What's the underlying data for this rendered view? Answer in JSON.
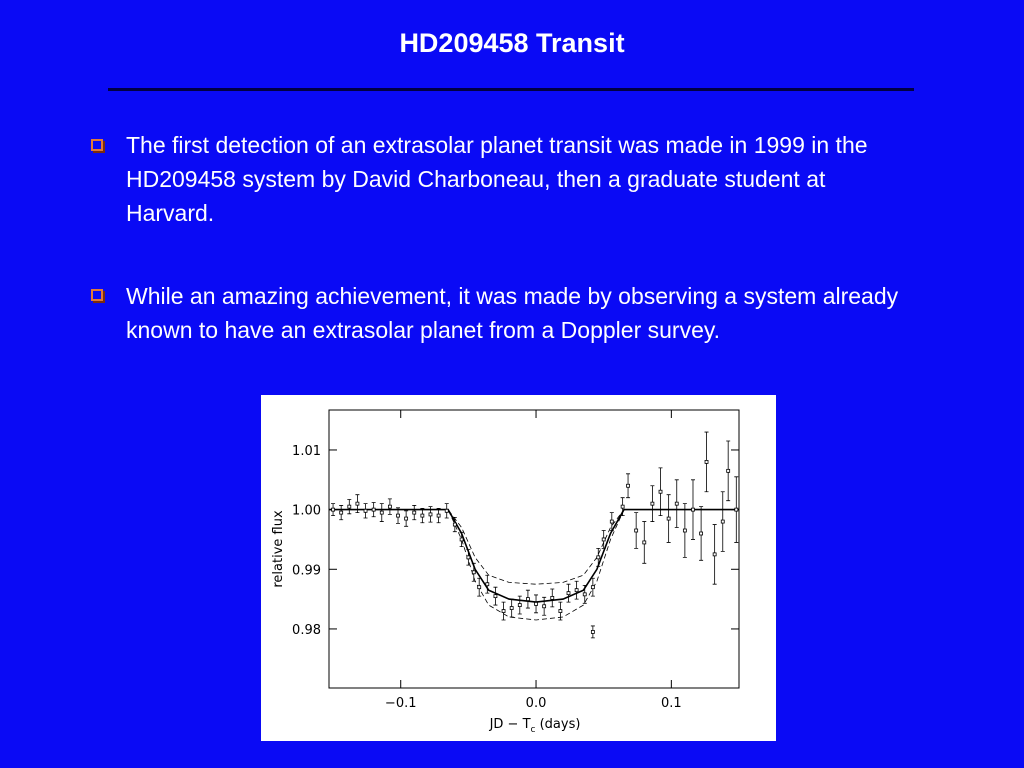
{
  "header": {
    "title": "HD209458 Transit"
  },
  "bullets": [
    "The first detection of an extrasolar planet transit was made in 1999 in the HD209458 system by David Charboneau, then a graduate student at Harvard.",
    "While an amazing achievement, it was made by observing a system already known to have an extrasolar planet from a Doppler survey."
  ],
  "figure": {
    "type": "scatter",
    "xlabel": "JD − T",
    "xlabel_sub": "c",
    "xlabel_suffix": " (days)",
    "ylabel": "relative flux",
    "xlim": [
      -0.153,
      0.15
    ],
    "ylim": [
      0.9701,
      1.0167
    ],
    "xticks": [
      {
        "value": -0.1,
        "label": "−0.1"
      },
      {
        "value": 0,
        "label": "0.0"
      },
      {
        "value": 0.1,
        "label": "0.1"
      }
    ],
    "yticks": [
      0.98,
      0.99,
      {
        "value": 1,
        "label": "1.00"
      },
      1.01
    ],
    "data": {
      "x": [
        -0.15,
        -0.144,
        -0.138,
        -0.132,
        -0.126,
        -0.12,
        -0.114,
        -0.108,
        -0.102,
        -0.096,
        -0.09,
        -0.084,
        -0.078,
        -0.072,
        -0.066,
        -0.06,
        -0.055,
        -0.05,
        -0.046,
        -0.042,
        -0.036,
        -0.03,
        -0.024,
        -0.018,
        -0.012,
        -0.006,
        0.0,
        0.006,
        0.012,
        0.018,
        0.024,
        0.03,
        0.036,
        0.042,
        0.042,
        0.046,
        0.05,
        0.056,
        0.064,
        0.068,
        0.074,
        0.08,
        0.086,
        0.092,
        0.098,
        0.104,
        0.11,
        0.116,
        0.122,
        0.126,
        0.132,
        0.138,
        0.142,
        0.148
      ],
      "values": [
        1.0,
        0.9995,
        1.0005,
        1.001,
        0.9998,
        1.0,
        0.9995,
        1.0005,
        0.999,
        0.9985,
        0.9995,
        0.999,
        0.9992,
        0.999,
        0.9998,
        0.9975,
        0.995,
        0.992,
        0.9895,
        0.987,
        0.9875,
        0.9855,
        0.983,
        0.9835,
        0.984,
        0.985,
        0.9842,
        0.9838,
        0.9852,
        0.983,
        0.986,
        0.9865,
        0.9858,
        0.987,
        0.9795,
        0.992,
        0.995,
        0.998,
        1.0005,
        1.004,
        0.9965,
        0.9945,
        1.001,
        1.003,
        0.9985,
        1.001,
        0.9965,
        1.0,
        0.996,
        1.008,
        0.9925,
        0.998,
        1.0065,
        1.0
      ],
      "errors": [
        0.001,
        0.0012,
        0.0012,
        0.0015,
        0.0012,
        0.0012,
        0.0015,
        0.0013,
        0.0013,
        0.0013,
        0.0012,
        0.0012,
        0.0013,
        0.0012,
        0.0012,
        0.0012,
        0.0012,
        0.0013,
        0.0015,
        0.0015,
        0.0015,
        0.0015,
        0.0015,
        0.0015,
        0.0015,
        0.0015,
        0.0015,
        0.0015,
        0.0015,
        0.0015,
        0.0015,
        0.0015,
        0.0015,
        0.0015,
        0.001,
        0.0015,
        0.0015,
        0.0015,
        0.0015,
        0.002,
        0.003,
        0.0035,
        0.003,
        0.004,
        0.004,
        0.004,
        0.0045,
        0.005,
        0.0045,
        0.005,
        0.005,
        0.005,
        0.005,
        0.0055
      ]
    },
    "curve_x": [
      -0.153,
      -0.065,
      -0.055,
      -0.045,
      -0.035,
      -0.02,
      0,
      0.02,
      0.035,
      0.045,
      0.055,
      0.065,
      0.15
    ],
    "curves": [
      {
        "style": "solid",
        "values": [
          1.0,
          1.0,
          0.996,
          0.99,
          0.9865,
          0.985,
          0.9845,
          0.985,
          0.9865,
          0.99,
          0.996,
          1.0,
          1.0
        ]
      },
      {
        "style": "dashed",
        "values": [
          1.0,
          1.0,
          0.997,
          0.992,
          0.989,
          0.9878,
          0.9875,
          0.9878,
          0.989,
          0.992,
          0.997,
          1.0,
          1.0
        ]
      },
      {
        "style": "dashed",
        "values": [
          1.0,
          1.0,
          0.995,
          0.988,
          0.984,
          0.982,
          0.9815,
          0.982,
          0.984,
          0.988,
          0.995,
          1.0,
          1.0
        ]
      }
    ]
  }
}
